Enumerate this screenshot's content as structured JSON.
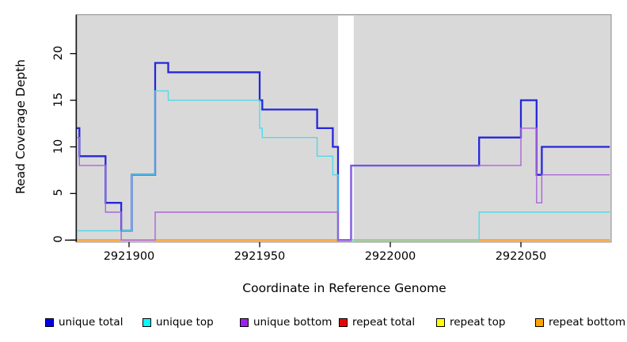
{
  "chart_data": {
    "type": "line",
    "step": "after",
    "title": "",
    "xlabel": "Coordinate in Reference Genome",
    "ylabel": "Read Coverage Depth",
    "xlim": [
      2921880,
      2922084
    ],
    "ylim": [
      0,
      24
    ],
    "x_ticks": [
      2921900,
      2921950,
      2922000,
      2922050
    ],
    "y_ticks": [
      0,
      5,
      10,
      15,
      20
    ],
    "grid": false,
    "legend_position": "bottom",
    "gap_region": {
      "from": 2921980,
      "to": 2921986,
      "note": "white masked band, all series at 0"
    },
    "series": [
      {
        "name": "repeat total",
        "color": "#cc2222",
        "breakpoints": [
          [
            2921880,
            0
          ]
        ]
      },
      {
        "name": "repeat top",
        "color": "#eeee22",
        "breakpoints": [
          [
            2921880,
            0
          ]
        ]
      },
      {
        "name": "repeat bottom",
        "color": "#ff9d1e",
        "breakpoints": [
          [
            2921880,
            0
          ]
        ]
      },
      {
        "name": "unique total",
        "color": "#2626dc",
        "breakpoints": [
          [
            2921880,
            12
          ],
          [
            2921881,
            9
          ],
          [
            2921891,
            4
          ],
          [
            2921897,
            1
          ],
          [
            2921901,
            7
          ],
          [
            2921910,
            19
          ],
          [
            2921915,
            18
          ],
          [
            2921950,
            15
          ],
          [
            2921951,
            14
          ],
          [
            2921972,
            12
          ],
          [
            2921978,
            10
          ],
          [
            2921980,
            0
          ],
          [
            2921985,
            8
          ],
          [
            2922034,
            11
          ],
          [
            2922050,
            15
          ],
          [
            2922056,
            7
          ],
          [
            2922058,
            10
          ]
        ]
      },
      {
        "name": "unique top",
        "color": "#52d9e6",
        "breakpoints": [
          [
            2921880,
            1
          ],
          [
            2921901,
            7
          ],
          [
            2921910,
            16
          ],
          [
            2921915,
            15
          ],
          [
            2921950,
            12
          ],
          [
            2921951,
            11
          ],
          [
            2921972,
            9
          ],
          [
            2921978,
            7
          ],
          [
            2921980,
            0
          ],
          [
            2922034,
            3
          ]
        ]
      },
      {
        "name": "unique bottom",
        "color": "#ab66d8",
        "breakpoints": [
          [
            2921880,
            11
          ],
          [
            2921881,
            8
          ],
          [
            2921891,
            3
          ],
          [
            2921897,
            0
          ],
          [
            2921910,
            3
          ],
          [
            2921980,
            0
          ],
          [
            2921985,
            8
          ],
          [
            2922050,
            12
          ],
          [
            2922056,
            4
          ],
          [
            2922058,
            7
          ]
        ]
      }
    ],
    "overlap_segment": {
      "from": 2921986,
      "to": 2922034,
      "value": 0,
      "color": "#8cca90"
    }
  },
  "axes_text": {
    "y_tick_labels": [
      "0",
      "5",
      "10",
      "15",
      "20"
    ],
    "x_tick_labels": [
      "2921900",
      "2921950",
      "2922000",
      "2922050"
    ]
  },
  "legend": {
    "items": [
      {
        "label": "unique total",
        "swatch_color": "#0000ee"
      },
      {
        "label": "unique top",
        "swatch_color": "#00ffff"
      },
      {
        "label": "unique bottom",
        "swatch_color": "#a020f0"
      },
      {
        "label": "repeat total",
        "swatch_color": "#ee0000"
      },
      {
        "label": "repeat top",
        "swatch_color": "#ffff00"
      },
      {
        "label": "repeat bottom",
        "swatch_color": "#ffa400"
      }
    ]
  },
  "colors": {
    "plot_background": "#d9d9d9",
    "plot_border": "#9a9a9a",
    "axis_color": "#000000",
    "gap_band": "#ffffff"
  }
}
